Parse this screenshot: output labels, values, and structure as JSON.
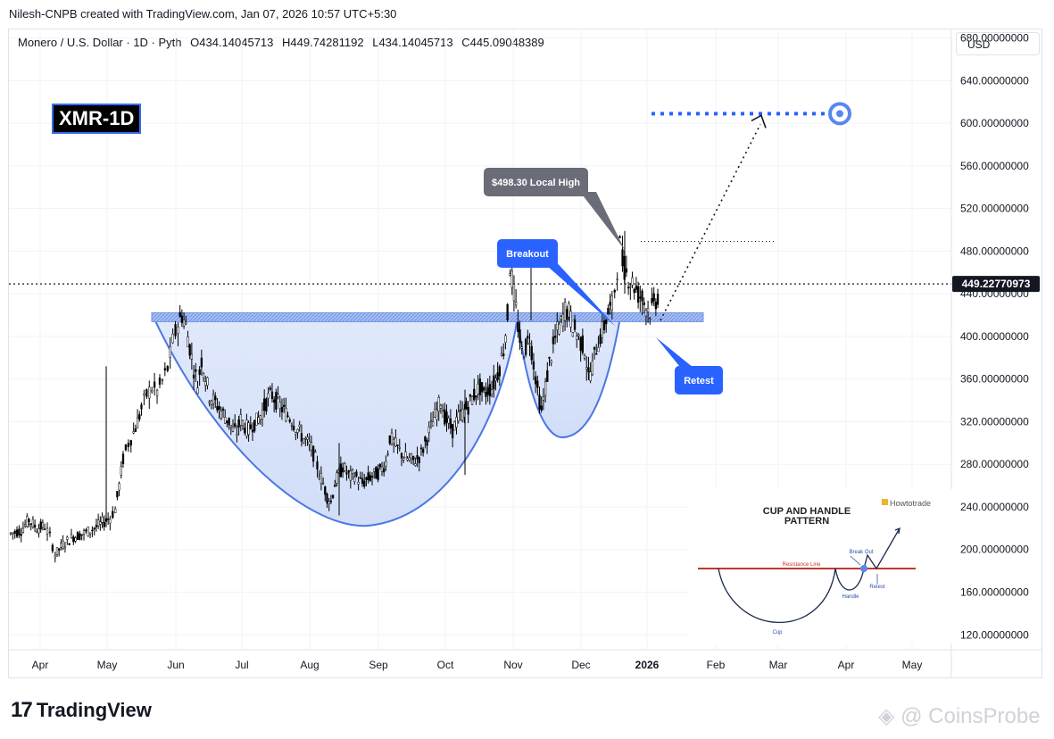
{
  "header": {
    "attribution": "Nilesh-CNPB created with TradingView.com, Jan 07, 2026 10:57 UTC+5:30"
  },
  "legend": {
    "symbol": "Monero / U.S. Dollar · 1D · Pyth",
    "open": "O434.14045713",
    "high": "H449.74281192",
    "low": "L434.14045713",
    "close": "C445.09048389"
  },
  "currency_button": "USD",
  "symbol_badge": "XMR-1D",
  "footer": {
    "brand": "TradingView",
    "watermark": "@ CoinsProbe"
  },
  "annotations": {
    "local_high": "$498.30 Local High",
    "breakout": "Breakout",
    "retest": "Retest",
    "current_price": "449.22770973"
  },
  "inset": {
    "title_line1": "CUP AND HANDLE",
    "title_line2": "PATTERN",
    "brand": "Howtotrade",
    "resistance": "Resistance Line",
    "breakout": "Break Out",
    "handle": "Handle",
    "retest": "Retest",
    "cup": "Cup"
  },
  "chart_data": {
    "type": "candlestick",
    "y_ticks": [
      680,
      640,
      600,
      560,
      520,
      480,
      440,
      400,
      360,
      320,
      280,
      240,
      200,
      160,
      120
    ],
    "y_tick_labels": [
      "680.00000000",
      "640.00000000",
      "600.00000000",
      "560.00000000",
      "520.00000000",
      "480.00000000",
      "440.00000000",
      "400.00000000",
      "360.00000000",
      "320.00000000",
      "280.00000000",
      "240.00000000",
      "200.00000000",
      "160.00000000",
      "120.00000000"
    ],
    "x_labels": [
      "Apr",
      "May",
      "Jun",
      "Jul",
      "Aug",
      "Sep",
      "Oct",
      "Nov",
      "Dec",
      "2026",
      "Feb",
      "Mar",
      "Apr",
      "May"
    ],
    "ylim": [
      106,
      688
    ],
    "current_price": 449.23,
    "resistance": 418,
    "target": 609,
    "local_high_level": 498.3,
    "price_path": [
      [
        0,
        215
      ],
      [
        8,
        218
      ],
      [
        14,
        228
      ],
      [
        20,
        220
      ],
      [
        26,
        222
      ],
      [
        30,
        212
      ],
      [
        34,
        195
      ],
      [
        40,
        205
      ],
      [
        48,
        212
      ],
      [
        56,
        215
      ],
      [
        64,
        220
      ],
      [
        70,
        225
      ],
      [
        76,
        230
      ],
      [
        80,
        238
      ],
      [
        83,
        260
      ],
      [
        86,
        285
      ],
      [
        90,
        300
      ],
      [
        94,
        310
      ],
      [
        97,
        320
      ],
      [
        100,
        332
      ],
      [
        104,
        345
      ],
      [
        108,
        352
      ],
      [
        112,
        348
      ],
      [
        116,
        358
      ],
      [
        120,
        370
      ],
      [
        124,
        395
      ],
      [
        128,
        412
      ],
      [
        131,
        420
      ],
      [
        134,
        410
      ],
      [
        137,
        390
      ],
      [
        140,
        370
      ],
      [
        143,
        355
      ],
      [
        146,
        378
      ],
      [
        149,
        362
      ],
      [
        152,
        345
      ],
      [
        155,
        340
      ],
      [
        158,
        335
      ],
      [
        161,
        330
      ],
      [
        164,
        325
      ],
      [
        167,
        320
      ],
      [
        170,
        312
      ],
      [
        173,
        310
      ],
      [
        176,
        322
      ],
      [
        179,
        316
      ],
      [
        182,
        312
      ],
      [
        185,
        318
      ],
      [
        188,
        320
      ],
      [
        191,
        326
      ],
      [
        194,
        334
      ],
      [
        197,
        342
      ],
      [
        200,
        345
      ],
      [
        203,
        340
      ],
      [
        206,
        335
      ],
      [
        209,
        330
      ],
      [
        212,
        326
      ],
      [
        215,
        322
      ],
      [
        218,
        315
      ],
      [
        221,
        310
      ],
      [
        224,
        304
      ],
      [
        227,
        300
      ],
      [
        230,
        295
      ],
      [
        233,
        285
      ],
      [
        236,
        272
      ],
      [
        239,
        262
      ],
      [
        242,
        250
      ],
      [
        245,
        245
      ],
      [
        248,
        262
      ],
      [
        251,
        270
      ],
      [
        254,
        278
      ],
      [
        257,
        272
      ],
      [
        260,
        268
      ],
      [
        263,
        270
      ],
      [
        266,
        266
      ],
      [
        269,
        262
      ],
      [
        272,
        265
      ],
      [
        275,
        268
      ],
      [
        278,
        270
      ],
      [
        281,
        272
      ],
      [
        284,
        276
      ],
      [
        287,
        282
      ],
      [
        290,
        305
      ],
      [
        293,
        300
      ],
      [
        296,
        295
      ],
      [
        299,
        290
      ],
      [
        302,
        286
      ],
      [
        305,
        284
      ],
      [
        308,
        283
      ],
      [
        311,
        285
      ],
      [
        314,
        290
      ],
      [
        317,
        300
      ],
      [
        320,
        310
      ],
      [
        323,
        320
      ],
      [
        326,
        330
      ],
      [
        329,
        340
      ],
      [
        332,
        325
      ],
      [
        335,
        318
      ],
      [
        338,
        312
      ],
      [
        341,
        320
      ],
      [
        344,
        326
      ],
      [
        347,
        330
      ],
      [
        350,
        335
      ],
      [
        353,
        342
      ],
      [
        356,
        348
      ],
      [
        359,
        352
      ],
      [
        362,
        345
      ],
      [
        365,
        350
      ],
      [
        368,
        352
      ],
      [
        371,
        360
      ],
      [
        374,
        372
      ],
      [
        377,
        388
      ],
      [
        380,
        420
      ],
      [
        382,
        466
      ],
      [
        385,
        440
      ],
      [
        388,
        410
      ],
      [
        391,
        385
      ],
      [
        394,
        390
      ],
      [
        397,
        400
      ],
      [
        400,
        375
      ],
      [
        403,
        350
      ],
      [
        406,
        330
      ],
      [
        409,
        352
      ],
      [
        412,
        375
      ],
      [
        415,
        390
      ],
      [
        418,
        405
      ],
      [
        421,
        412
      ],
      [
        424,
        425
      ],
      [
        427,
        422
      ],
      [
        430,
        410
      ],
      [
        433,
        402
      ],
      [
        436,
        395
      ],
      [
        439,
        388
      ],
      [
        442,
        362
      ],
      [
        445,
        372
      ],
      [
        448,
        390
      ],
      [
        451,
        400
      ],
      [
        454,
        410
      ],
      [
        457,
        422
      ],
      [
        460,
        428
      ],
      [
        462,
        445
      ],
      [
        464,
        465
      ],
      [
        466,
        485
      ],
      [
        468,
        470
      ],
      [
        471,
        460
      ],
      [
        474,
        452
      ],
      [
        477,
        448
      ],
      [
        480,
        440
      ],
      [
        483,
        436
      ],
      [
        486,
        428
      ],
      [
        489,
        424
      ],
      [
        492,
        430
      ],
      [
        495,
        438
      ],
      [
        497,
        445
      ]
    ]
  }
}
